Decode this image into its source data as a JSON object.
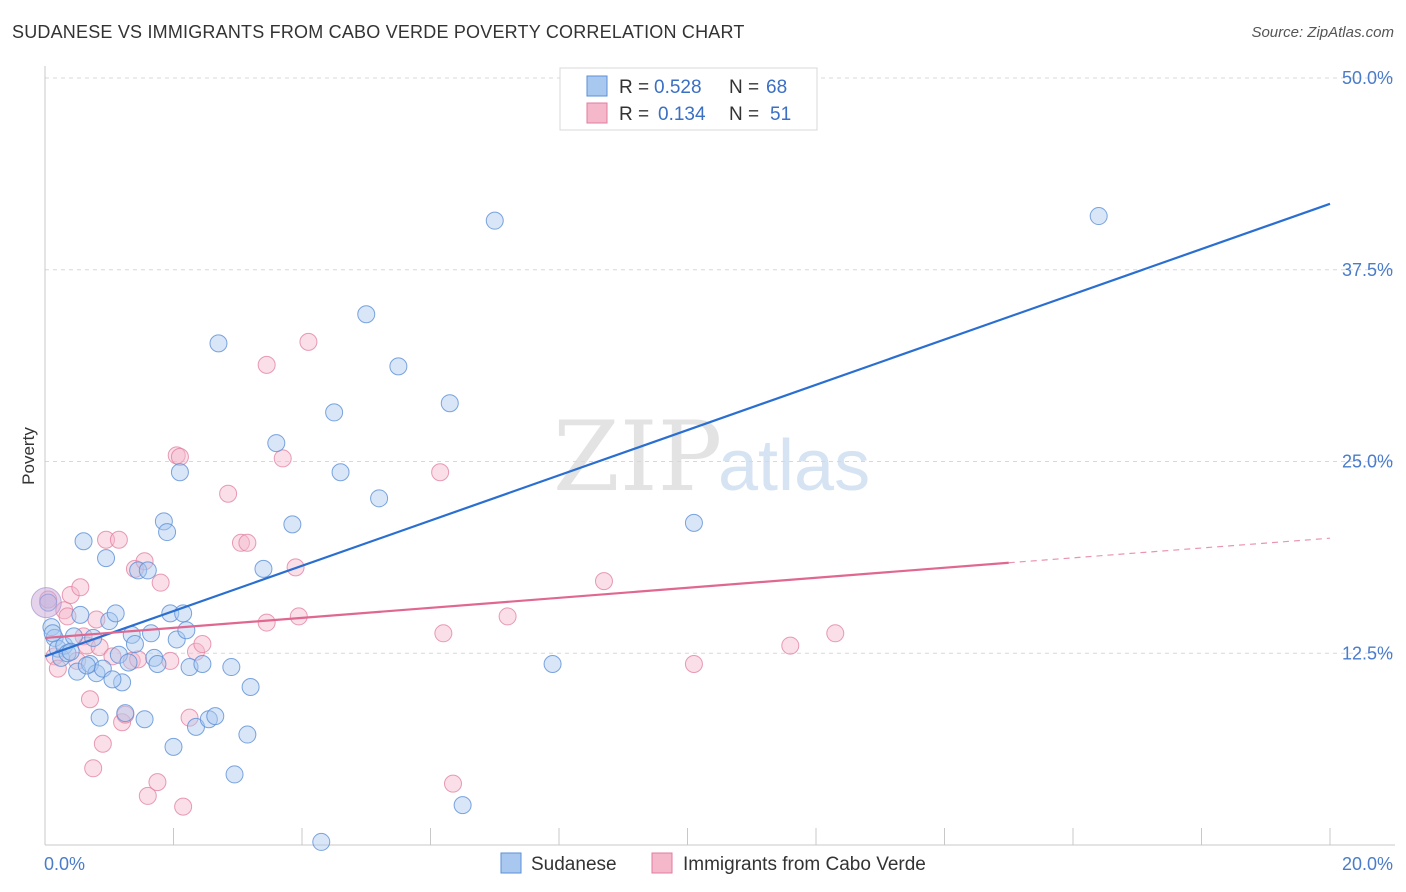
{
  "title": "SUDANESE VS IMMIGRANTS FROM CABO VERDE POVERTY CORRELATION CHART",
  "source": "Source: ZipAtlas.com",
  "colors": {
    "sudanese_fill": "#a8c8f0",
    "sudanese_stroke": "#5b8fd6",
    "sudanese_line": "#2a6fd0",
    "caboverde_fill": "#f5b8cb",
    "caboverde_stroke": "#e07c9c",
    "caboverde_line": "#e06890",
    "grid": "#d8d8d8",
    "tick_label": "#4a7cc9"
  },
  "legend": {
    "rows": [
      {
        "r_label": "R =",
        "r_value": "0.528",
        "n_label": "N =",
        "n_value": "68"
      },
      {
        "r_label": "R =",
        "r_value": "0.134",
        "n_label": "N =",
        "n_value": "51"
      }
    ]
  },
  "bottom_legend": [
    "Sudanese",
    "Immigrants from Cabo Verde"
  ],
  "watermark": {
    "zip": "ZIP",
    "atlas": "atlas"
  },
  "chart_data": {
    "type": "scatter",
    "title": "SUDANESE VS IMMIGRANTS FROM CABO VERDE POVERTY CORRELATION CHART",
    "xlabel": "",
    "ylabel": "Poverty",
    "xlim": [
      0,
      20
    ],
    "ylim": [
      0,
      50
    ],
    "x_tick_labels": [
      "0.0%",
      "20.0%"
    ],
    "y_ticks": [
      12.5,
      25.0,
      37.5,
      50.0
    ],
    "y_tick_labels": [
      "12.5%",
      "25.0%",
      "37.5%",
      "50.0%"
    ],
    "grid": true,
    "legend_position": "top-center",
    "series": [
      {
        "name": "Sudanese",
        "trend": {
          "x": [
            0,
            20
          ],
          "y": [
            12.3,
            41.8
          ]
        },
        "points": [
          [
            0.05,
            15.8
          ],
          [
            0.1,
            14.2
          ],
          [
            0.15,
            13.5
          ],
          [
            0.2,
            12.8
          ],
          [
            0.25,
            12.2
          ],
          [
            0.3,
            13.0
          ],
          [
            0.35,
            12.5
          ],
          [
            0.45,
            13.6
          ],
          [
            0.5,
            11.3
          ],
          [
            0.55,
            15.0
          ],
          [
            0.6,
            19.8
          ],
          [
            0.7,
            11.8
          ],
          [
            0.75,
            13.5
          ],
          [
            0.8,
            11.2
          ],
          [
            0.85,
            8.3
          ],
          [
            0.9,
            11.5
          ],
          [
            0.95,
            18.7
          ],
          [
            1.0,
            14.6
          ],
          [
            1.1,
            15.1
          ],
          [
            1.15,
            12.4
          ],
          [
            1.2,
            10.6
          ],
          [
            1.25,
            8.6
          ],
          [
            1.3,
            11.9
          ],
          [
            1.35,
            13.7
          ],
          [
            1.4,
            13.1
          ],
          [
            1.45,
            17.9
          ],
          [
            1.55,
            8.2
          ],
          [
            1.6,
            17.9
          ],
          [
            1.65,
            13.8
          ],
          [
            1.7,
            12.2
          ],
          [
            1.75,
            11.8
          ],
          [
            1.85,
            21.1
          ],
          [
            1.9,
            20.4
          ],
          [
            1.95,
            15.1
          ],
          [
            2.0,
            6.4
          ],
          [
            2.05,
            13.4
          ],
          [
            2.1,
            24.3
          ],
          [
            2.15,
            15.1
          ],
          [
            2.2,
            14.0
          ],
          [
            2.25,
            11.6
          ],
          [
            2.35,
            7.7
          ],
          [
            2.45,
            11.8
          ],
          [
            2.55,
            8.2
          ],
          [
            2.65,
            8.4
          ],
          [
            2.7,
            32.7
          ],
          [
            2.9,
            11.6
          ],
          [
            2.95,
            4.6
          ],
          [
            3.15,
            7.2
          ],
          [
            3.2,
            10.3
          ],
          [
            3.4,
            18.0
          ],
          [
            3.6,
            26.2
          ],
          [
            3.85,
            20.9
          ],
          [
            4.3,
            0.2
          ],
          [
            4.5,
            28.2
          ],
          [
            4.6,
            24.3
          ],
          [
            5.0,
            34.6
          ],
          [
            5.2,
            22.6
          ],
          [
            5.5,
            31.2
          ],
          [
            6.3,
            28.8
          ],
          [
            6.5,
            2.6
          ],
          [
            7.0,
            40.7
          ],
          [
            7.9,
            11.8
          ],
          [
            10.1,
            21.0
          ],
          [
            16.4,
            41.0
          ],
          [
            0.12,
            13.8
          ],
          [
            0.4,
            12.6
          ],
          [
            0.65,
            11.7
          ],
          [
            1.05,
            10.8
          ]
        ]
      },
      {
        "name": "Immigrants from Cabo Verde",
        "trend": {
          "x": [
            0,
            15
          ],
          "y": [
            13.5,
            18.4
          ]
        },
        "trend_extension": {
          "x": [
            15,
            20
          ],
          "y": [
            18.4,
            20.0
          ]
        },
        "points": [
          [
            0.05,
            16.0
          ],
          [
            0.15,
            12.3
          ],
          [
            0.2,
            11.5
          ],
          [
            0.3,
            15.3
          ],
          [
            0.35,
            14.9
          ],
          [
            0.4,
            16.3
          ],
          [
            0.5,
            12.0
          ],
          [
            0.55,
            16.8
          ],
          [
            0.6,
            13.6
          ],
          [
            0.65,
            13.0
          ],
          [
            0.7,
            9.5
          ],
          [
            0.75,
            5.0
          ],
          [
            0.8,
            14.7
          ],
          [
            0.85,
            12.9
          ],
          [
            0.9,
            6.6
          ],
          [
            0.95,
            19.9
          ],
          [
            1.05,
            12.3
          ],
          [
            1.15,
            19.9
          ],
          [
            1.2,
            8.0
          ],
          [
            1.25,
            8.5
          ],
          [
            1.35,
            12.0
          ],
          [
            1.4,
            18.0
          ],
          [
            1.45,
            12.1
          ],
          [
            1.55,
            18.5
          ],
          [
            1.6,
            3.2
          ],
          [
            1.75,
            4.1
          ],
          [
            1.8,
            17.1
          ],
          [
            1.95,
            12.0
          ],
          [
            2.05,
            25.4
          ],
          [
            2.1,
            25.3
          ],
          [
            2.15,
            2.5
          ],
          [
            2.25,
            8.3
          ],
          [
            2.35,
            12.6
          ],
          [
            2.45,
            13.1
          ],
          [
            2.85,
            22.9
          ],
          [
            3.05,
            19.7
          ],
          [
            3.15,
            19.7
          ],
          [
            3.45,
            31.3
          ],
          [
            3.7,
            25.2
          ],
          [
            3.45,
            14.5
          ],
          [
            3.9,
            18.1
          ],
          [
            3.95,
            14.9
          ],
          [
            4.1,
            32.8
          ],
          [
            6.15,
            24.3
          ],
          [
            6.2,
            13.8
          ],
          [
            6.35,
            4.0
          ],
          [
            7.2,
            14.9
          ],
          [
            8.7,
            17.2
          ],
          [
            10.1,
            11.8
          ],
          [
            11.6,
            13.0
          ],
          [
            12.3,
            13.8
          ]
        ]
      }
    ]
  }
}
